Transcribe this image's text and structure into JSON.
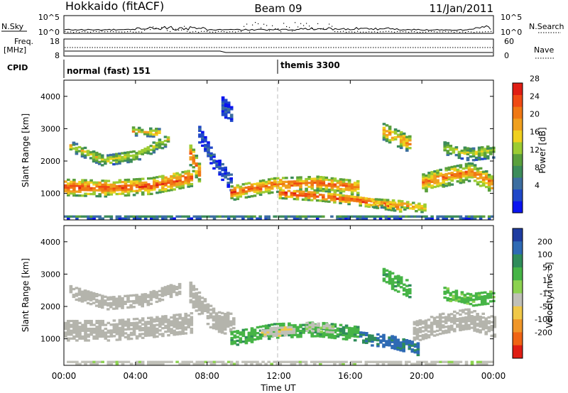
{
  "header": {
    "station": "Hokkaido (fitACF)",
    "beam": "Beam 09",
    "date": "11/Jan/2011"
  },
  "noise_panel": {
    "left_label": "N.Sky",
    "left_ticks": [
      "10^5",
      "10^0"
    ],
    "right_label": "N.Search",
    "right_ticks": [
      "10^5",
      "10^0"
    ]
  },
  "freq_panel": {
    "left_label_1": "Freq.",
    "left_label_2": "[MHz]",
    "left_ticks": [
      "18",
      "8"
    ],
    "right_label": "Nave",
    "right_ticks": [
      "60",
      "0"
    ]
  },
  "cpid_panel": {
    "label": "CPID",
    "modes": [
      "normal (fast) 151",
      "themis 3300"
    ]
  },
  "colors": {
    "power_scale": [
      "#0a14f0",
      "#2048c8",
      "#3c6ea0",
      "#3c8c5a",
      "#5aa03c",
      "#9ccc32",
      "#f0d01e",
      "#f0a01e",
      "#f07814",
      "#f04a14",
      "#e01e14"
    ],
    "velocity_scale": [
      "#1e3ca0",
      "#2e6ab4",
      "#2f8c5a",
      "#46b446",
      "#8cd250",
      "#c0c0b8",
      "#f0c848",
      "#f09628",
      "#f06414",
      "#e01e14"
    ],
    "ground_scatter": "#b4b4ac"
  },
  "chart_data": [
    {
      "type": "heatmap",
      "panel": "power",
      "xlabel": "Time UT",
      "x_ticks": [
        "00:00",
        "04:00",
        "08:00",
        "12:00",
        "16:00",
        "20:00",
        "00:00"
      ],
      "xlim_hours": [
        0,
        24
      ],
      "ylabel": "Slant Range [km]",
      "y_ticks": [
        1000,
        2000,
        3000,
        4000
      ],
      "ylim_km": [
        180,
        4500
      ],
      "colorbar": {
        "label": "Power [dB]",
        "ticks": [
          "4",
          "8",
          "12",
          "16",
          "20",
          "24",
          "28"
        ],
        "range": [
          0,
          30
        ]
      },
      "regions": [
        {
          "start_h": 0.0,
          "end_h": 7.2,
          "center_km": [
            1180,
            1140,
            1220,
            1480
          ],
          "width_km": 520,
          "level": 26
        },
        {
          "start_h": 0.3,
          "end_h": 5.8,
          "center_km": [
            2450,
            2000,
            2150,
            2650
          ],
          "width_km": 340,
          "level": 17
        },
        {
          "start_h": 3.8,
          "end_h": 5.4,
          "center_km": [
            2900,
            2850
          ],
          "width_km": 260,
          "level": 20
        },
        {
          "start_h": 7.0,
          "end_h": 7.6,
          "center_km": [
            2200,
            1500
          ],
          "width_km": 700,
          "level": 24
        },
        {
          "start_h": 7.5,
          "end_h": 9.3,
          "center_km": [
            2800,
            1900,
            1300
          ],
          "width_km": 500,
          "level": 6
        },
        {
          "start_h": 8.8,
          "end_h": 9.4,
          "center_km": [
            3700,
            3400
          ],
          "width_km": 600,
          "level": 5
        },
        {
          "start_h": 9.3,
          "end_h": 16.5,
          "center_km": [
            1000,
            1250,
            1300,
            1150
          ],
          "width_km": 460,
          "level": 25
        },
        {
          "start_h": 12.0,
          "end_h": 18.8,
          "center_km": [
            980,
            900,
            750,
            560
          ],
          "width_km": 300,
          "level": 28
        },
        {
          "start_h": 17.2,
          "end_h": 20.2,
          "center_km": [
            700,
            640,
            520
          ],
          "width_km": 280,
          "level": 22
        },
        {
          "start_h": 17.8,
          "end_h": 19.3,
          "center_km": [
            2900,
            2500
          ],
          "width_km": 520,
          "level": 22
        },
        {
          "start_h": 20.0,
          "end_h": 24.0,
          "center_km": [
            1300,
            1500,
            1650,
            1250
          ],
          "width_km": 560,
          "level": 24
        },
        {
          "start_h": 21.2,
          "end_h": 24.0,
          "center_km": [
            2400,
            2200,
            2300
          ],
          "width_km": 420,
          "level": 16
        },
        {
          "start_h": 0.0,
          "end_h": 24.0,
          "center_km": [
            260,
            260
          ],
          "width_km": 120,
          "level": 9
        }
      ]
    },
    {
      "type": "heatmap",
      "panel": "velocity",
      "xlabel": "Time UT",
      "x_ticks": [
        "00:00",
        "04:00",
        "08:00",
        "12:00",
        "16:00",
        "20:00",
        "00:00"
      ],
      "xlim_hours": [
        0,
        24
      ],
      "ylabel": "Slant Range [km]",
      "y_ticks": [
        1000,
        2000,
        3000,
        4000
      ],
      "ylim_km": [
        180,
        4500
      ],
      "colorbar": {
        "label": "Velocity [m s⁻¹]",
        "ticks": [
          "200",
          "100",
          "50",
          "15",
          "-15",
          "-50",
          "-100",
          "-200"
        ],
        "range": [
          -250,
          250
        ]
      },
      "regions": [
        {
          "start_h": 0.0,
          "end_h": 7.2,
          "center_km": [
            1250,
            1250,
            1350,
            1500
          ],
          "width_km": 650,
          "level": 0,
          "ground": true
        },
        {
          "start_h": 0.3,
          "end_h": 6.5,
          "center_km": [
            2450,
            2100,
            2200,
            2600
          ],
          "width_km": 420,
          "level": 0,
          "ground": true
        },
        {
          "start_h": 7.0,
          "end_h": 9.5,
          "center_km": [
            2400,
            1600,
            1400
          ],
          "width_km": 700,
          "level": 0,
          "ground": true
        },
        {
          "start_h": 9.3,
          "end_h": 16.5,
          "center_km": [
            1000,
            1250,
            1300,
            1150
          ],
          "width_km": 480,
          "level": 40
        },
        {
          "start_h": 11.0,
          "end_h": 12.8,
          "center_km": [
            1200,
            1250
          ],
          "width_km": 300,
          "level": -40
        },
        {
          "start_h": 13.5,
          "end_h": 15.0,
          "center_km": [
            1350,
            1300
          ],
          "width_km": 250,
          "level": -20
        },
        {
          "start_h": 16.5,
          "end_h": 19.8,
          "center_km": [
            1000,
            900,
            650
          ],
          "width_km": 380,
          "level": 110
        },
        {
          "start_h": 17.8,
          "end_h": 19.3,
          "center_km": [
            2900,
            2500
          ],
          "width_km": 500,
          "level": 35
        },
        {
          "start_h": 19.5,
          "end_h": 24.0,
          "center_km": [
            1200,
            1450,
            1600,
            1350
          ],
          "width_km": 620,
          "level": 0,
          "ground": true
        },
        {
          "start_h": 21.2,
          "end_h": 24.0,
          "center_km": [
            2400,
            2200,
            2300
          ],
          "width_km": 420,
          "level": 30
        },
        {
          "start_h": 0.0,
          "end_h": 24.0,
          "center_km": [
            260,
            260
          ],
          "width_km": 120,
          "level": -30
        }
      ]
    }
  ]
}
